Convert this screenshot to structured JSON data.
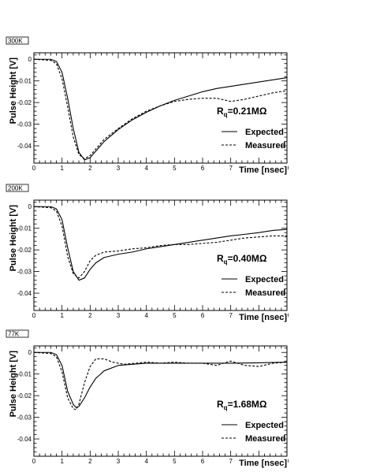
{
  "chart_data": [
    {
      "type": "line",
      "temperature_label": "300K",
      "rq_label": {
        "prefix": "R",
        "sub": "q",
        "value": "=0.21MΩ"
      },
      "xlabel": "Time [nsec]",
      "ylabel": "Pulse Height [V]",
      "xlim": [
        0,
        9
      ],
      "ylim": [
        -0.048,
        0.003
      ],
      "x_ticks": [
        "0",
        "1",
        "2",
        "3",
        "4",
        "5",
        "6",
        "7",
        "8",
        "9"
      ],
      "y_ticks": [
        "0",
        "-0.01",
        "-0.02",
        "-0.03",
        "-0.04"
      ],
      "legend": [
        "Expected",
        "Measured"
      ],
      "series": [
        {
          "name": "Expected",
          "style": "solid",
          "x": [
            0,
            0.6,
            0.8,
            1.0,
            1.2,
            1.4,
            1.6,
            1.8,
            2.0,
            2.2,
            2.5,
            3,
            3.5,
            4,
            4.5,
            5,
            5.5,
            6,
            6.5,
            7,
            7.5,
            8,
            8.5,
            9
          ],
          "y": [
            0,
            0,
            -0.001,
            -0.006,
            -0.018,
            -0.032,
            -0.043,
            -0.0465,
            -0.0455,
            -0.0425,
            -0.038,
            -0.0325,
            -0.028,
            -0.0245,
            -0.0215,
            -0.019,
            -0.017,
            -0.015,
            -0.0135,
            -0.0125,
            -0.0115,
            -0.0105,
            -0.0095,
            -0.0085
          ]
        },
        {
          "name": "Measured",
          "style": "dashed",
          "x": [
            0,
            0.6,
            0.8,
            1.0,
            1.2,
            1.4,
            1.6,
            1.8,
            2.0,
            2.2,
            2.5,
            3,
            3.5,
            4,
            4.5,
            5,
            5.5,
            6,
            6.5,
            7,
            7.5,
            8,
            8.5,
            9
          ],
          "y": [
            0,
            -0.0005,
            -0.002,
            -0.009,
            -0.022,
            -0.036,
            -0.044,
            -0.046,
            -0.0445,
            -0.0415,
            -0.037,
            -0.032,
            -0.0275,
            -0.024,
            -0.0215,
            -0.0195,
            -0.0185,
            -0.018,
            -0.018,
            -0.0195,
            -0.0185,
            -0.017,
            -0.0155,
            -0.0145
          ]
        }
      ]
    },
    {
      "type": "line",
      "temperature_label": "200K",
      "rq_label": {
        "prefix": "R",
        "sub": "q",
        "value": "=0.40MΩ"
      },
      "xlabel": "Time [nsec]",
      "ylabel": "Pulse Height [V]",
      "xlim": [
        0,
        9
      ],
      "ylim": [
        -0.048,
        0.003
      ],
      "x_ticks": [
        "0",
        "1",
        "2",
        "3",
        "4",
        "5",
        "6",
        "7",
        "8",
        "9"
      ],
      "y_ticks": [
        "0",
        "-0.01",
        "-0.02",
        "-0.03",
        "-0.04"
      ],
      "legend": [
        "Expected",
        "Measured"
      ],
      "series": [
        {
          "name": "Expected",
          "style": "solid",
          "x": [
            0,
            0.6,
            0.8,
            1.0,
            1.2,
            1.4,
            1.6,
            1.8,
            2.0,
            2.2,
            2.5,
            3,
            3.5,
            4,
            4.5,
            5,
            5.5,
            6,
            6.5,
            7,
            7.5,
            8,
            8.5,
            9
          ],
          "y": [
            0,
            0,
            -0.001,
            -0.006,
            -0.019,
            -0.03,
            -0.034,
            -0.033,
            -0.029,
            -0.026,
            -0.0235,
            -0.022,
            -0.021,
            -0.0195,
            -0.0185,
            -0.0175,
            -0.0165,
            -0.0155,
            -0.0145,
            -0.0135,
            -0.0128,
            -0.012,
            -0.011,
            -0.0105
          ]
        },
        {
          "name": "Measured",
          "style": "dashed",
          "x": [
            0,
            0.6,
            0.8,
            1.0,
            1.2,
            1.4,
            1.6,
            1.8,
            2.0,
            2.2,
            2.5,
            3,
            3.5,
            4,
            4.5,
            5,
            5.5,
            6,
            6.5,
            7,
            7.5,
            8,
            8.5,
            9
          ],
          "y": [
            0,
            -0.0005,
            -0.002,
            -0.009,
            -0.023,
            -0.031,
            -0.033,
            -0.03,
            -0.025,
            -0.0225,
            -0.021,
            -0.0205,
            -0.0195,
            -0.019,
            -0.018,
            -0.0175,
            -0.0175,
            -0.017,
            -0.0165,
            -0.0155,
            -0.0145,
            -0.014,
            -0.0135,
            -0.0135
          ]
        }
      ]
    },
    {
      "type": "line",
      "temperature_label": "77K",
      "rq_label": {
        "prefix": "R",
        "sub": "q",
        "value": "=1.68MΩ"
      },
      "xlabel": "Time [nsec]",
      "ylabel": "Pulse Height [V]",
      "xlim": [
        0,
        9
      ],
      "ylim": [
        -0.048,
        0.003
      ],
      "x_ticks": [
        "0",
        "1",
        "2",
        "3",
        "4",
        "5",
        "6",
        "7",
        "8",
        "9"
      ],
      "y_ticks": [
        "0",
        "-0.01",
        "-0.02",
        "-0.03",
        "-0.04"
      ],
      "legend": [
        "Expected",
        "Measured"
      ],
      "series": [
        {
          "name": "Expected",
          "style": "solid",
          "x": [
            0,
            0.6,
            0.8,
            1.0,
            1.2,
            1.4,
            1.5,
            1.6,
            1.8,
            2.0,
            2.2,
            2.5,
            3,
            3.5,
            4,
            5,
            6,
            7,
            8,
            9
          ],
          "y": [
            0,
            0,
            -0.001,
            -0.006,
            -0.018,
            -0.024,
            -0.0255,
            -0.025,
            -0.021,
            -0.016,
            -0.012,
            -0.0085,
            -0.006,
            -0.0055,
            -0.005,
            -0.005,
            -0.005,
            -0.005,
            -0.0048,
            -0.0045
          ]
        },
        {
          "name": "Measured",
          "style": "dashed",
          "x": [
            0,
            0.6,
            0.8,
            1.0,
            1.2,
            1.4,
            1.5,
            1.6,
            1.8,
            2.0,
            2.2,
            2.5,
            2.8,
            3.2,
            3.6,
            4,
            4.5,
            5,
            5.5,
            6,
            6.5,
            7,
            7.5,
            8,
            8.5,
            9
          ],
          "y": [
            0,
            -0.0005,
            -0.002,
            -0.009,
            -0.021,
            -0.026,
            -0.0265,
            -0.024,
            -0.014,
            -0.0065,
            -0.003,
            -0.003,
            -0.0045,
            -0.0055,
            -0.005,
            -0.0045,
            -0.005,
            -0.0045,
            -0.005,
            -0.005,
            -0.006,
            -0.004,
            -0.006,
            -0.0065,
            -0.005,
            -0.0045
          ]
        }
      ]
    }
  ]
}
